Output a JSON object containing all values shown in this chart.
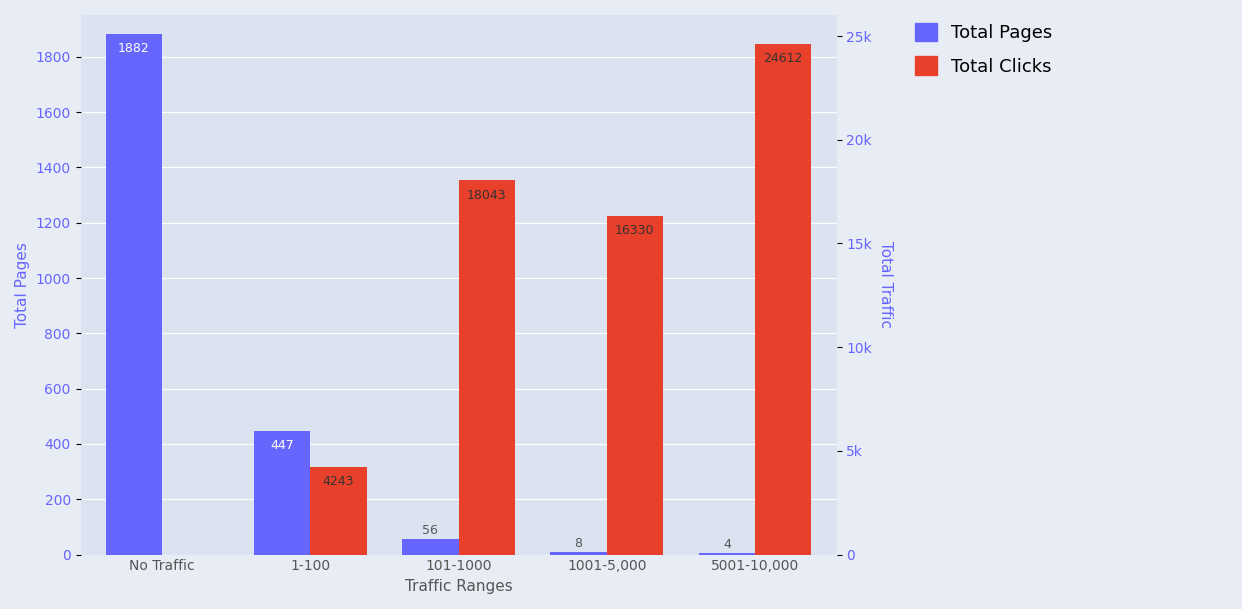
{
  "categories": [
    "No Traffic",
    "1-100",
    "101-1000",
    "1001-5,000",
    "5001-10,000"
  ],
  "total_pages": [
    1882,
    447,
    56,
    8,
    4
  ],
  "total_clicks": [
    0,
    4243,
    18043,
    16330,
    24612
  ],
  "pages_color": "#6666ff",
  "clicks_color": "#e8402a",
  "xlabel": "Traffic Ranges",
  "ylabel_left": "Total Pages",
  "ylabel_right": "Total Traffic",
  "legend_labels": [
    "Total Pages",
    "Total Clicks"
  ],
  "ylim_left": [
    0,
    1950
  ],
  "ylim_right": [
    0,
    26000
  ],
  "background_color": "#e8edf5",
  "plot_background": "#dce3f0",
  "bar_width": 0.38,
  "right_yticks": [
    0,
    5000,
    10000,
    15000,
    20000,
    25000
  ],
  "left_yticks": [
    0,
    200,
    400,
    600,
    800,
    1000,
    1200,
    1400,
    1600,
    1800
  ]
}
